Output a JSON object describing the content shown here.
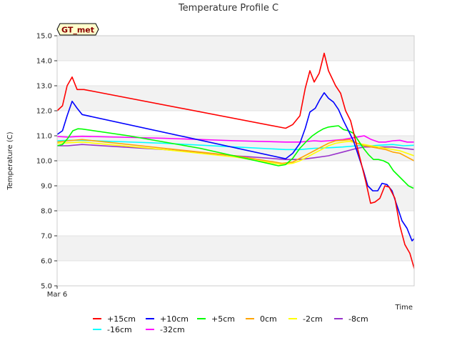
{
  "chart_data": {
    "type": "line",
    "title": "Temperature Profile C",
    "xlabel": "Time",
    "ylabel": "Temperature (C)",
    "ylim": [
      5.0,
      15.0
    ],
    "yticks": [
      "5.0",
      "6.0",
      "7.0",
      "8.0",
      "9.0",
      "10.0",
      "11.0",
      "12.0",
      "13.0",
      "14.0",
      "15.0"
    ],
    "xtick_label": "Mar 6",
    "annotation": "GT_met",
    "legend_position": "bottom",
    "grid": "alternating horizontal bands",
    "xlim": [
      0,
      100
    ],
    "series": [
      {
        "name": "+15cm",
        "color": "#ff0000",
        "points": [
          [
            0,
            12.0
          ],
          [
            1.5,
            12.2
          ],
          [
            2.8,
            13.0
          ],
          [
            4.2,
            13.35
          ],
          [
            5.6,
            12.85
          ],
          [
            7.5,
            12.85
          ],
          [
            64,
            11.3
          ],
          [
            66,
            11.45
          ],
          [
            68,
            11.8
          ],
          [
            69.5,
            12.9
          ],
          [
            70.8,
            13.6
          ],
          [
            72,
            13.15
          ],
          [
            73.4,
            13.5
          ],
          [
            74.8,
            14.3
          ],
          [
            76,
            13.6
          ],
          [
            78,
            13.0
          ],
          [
            79.4,
            12.7
          ],
          [
            80.8,
            12.0
          ],
          [
            82.2,
            11.6
          ],
          [
            83.6,
            10.8
          ],
          [
            85,
            10.0
          ],
          [
            86.4,
            9.2
          ],
          [
            87.8,
            8.3
          ],
          [
            89,
            8.35
          ],
          [
            90.4,
            8.5
          ],
          [
            91.8,
            9.0
          ],
          [
            93,
            8.95
          ],
          [
            94.6,
            8.5
          ],
          [
            96,
            7.4
          ],
          [
            97.4,
            6.65
          ],
          [
            98.8,
            6.3
          ],
          [
            100.2,
            5.6
          ],
          [
            101.5,
            6.1
          ]
        ]
      },
      {
        "name": "+10cm",
        "color": "#0000ff",
        "points": [
          [
            0,
            11.05
          ],
          [
            1.5,
            11.2
          ],
          [
            2.8,
            11.8
          ],
          [
            4.2,
            12.38
          ],
          [
            5.6,
            12.1
          ],
          [
            7,
            11.85
          ],
          [
            64,
            10.08
          ],
          [
            66,
            10.3
          ],
          [
            68,
            10.7
          ],
          [
            69.5,
            11.3
          ],
          [
            70.8,
            11.95
          ],
          [
            72.3,
            12.1
          ],
          [
            73.6,
            12.45
          ],
          [
            74.8,
            12.72
          ],
          [
            76,
            12.5
          ],
          [
            77.4,
            12.35
          ],
          [
            78.8,
            12.05
          ],
          [
            80.2,
            11.6
          ],
          [
            81.6,
            11.2
          ],
          [
            83,
            10.8
          ],
          [
            84.4,
            10.2
          ],
          [
            85.8,
            9.6
          ],
          [
            87,
            9.0
          ],
          [
            88.4,
            8.8
          ],
          [
            89.8,
            8.8
          ],
          [
            91,
            9.1
          ],
          [
            92.4,
            9.05
          ],
          [
            93.8,
            8.8
          ],
          [
            95.2,
            8.2
          ],
          [
            96.6,
            7.6
          ],
          [
            98,
            7.3
          ],
          [
            99.4,
            6.8
          ],
          [
            100.8,
            7.0
          ]
        ]
      },
      {
        "name": "+5cm",
        "color": "#00ff00",
        "points": [
          [
            0,
            10.6
          ],
          [
            1.5,
            10.65
          ],
          [
            3,
            10.9
          ],
          [
            4.4,
            11.2
          ],
          [
            5.8,
            11.28
          ],
          [
            7,
            11.27
          ],
          [
            20,
            11.0
          ],
          [
            40,
            10.5
          ],
          [
            62,
            9.8
          ],
          [
            64,
            9.85
          ],
          [
            66,
            10.1
          ],
          [
            68,
            10.5
          ],
          [
            70,
            10.8
          ],
          [
            71.5,
            11.0
          ],
          [
            73,
            11.15
          ],
          [
            74.6,
            11.28
          ],
          [
            76,
            11.35
          ],
          [
            77.6,
            11.38
          ],
          [
            78.8,
            11.4
          ],
          [
            80.2,
            11.25
          ],
          [
            81.6,
            11.2
          ],
          [
            83,
            11.1
          ],
          [
            84.4,
            10.8
          ],
          [
            85.8,
            10.5
          ],
          [
            87.2,
            10.25
          ],
          [
            88.6,
            10.05
          ],
          [
            90,
            10.05
          ],
          [
            91.4,
            10.0
          ],
          [
            92.8,
            9.9
          ],
          [
            94.2,
            9.6
          ],
          [
            95.6,
            9.4
          ],
          [
            97,
            9.2
          ],
          [
            98.4,
            9.0
          ],
          [
            99.8,
            8.9
          ]
        ]
      },
      {
        "name": "0cm",
        "color": "#ffa500",
        "points": [
          [
            0,
            10.75
          ],
          [
            3,
            10.8
          ],
          [
            7,
            10.85
          ],
          [
            30,
            10.5
          ],
          [
            50,
            10.2
          ],
          [
            63,
            9.9
          ],
          [
            66,
            9.95
          ],
          [
            68,
            10.1
          ],
          [
            70,
            10.25
          ],
          [
            72,
            10.4
          ],
          [
            74,
            10.55
          ],
          [
            76,
            10.7
          ],
          [
            78,
            10.8
          ],
          [
            80,
            10.82
          ],
          [
            82,
            10.85
          ],
          [
            84,
            10.7
          ],
          [
            86,
            10.6
          ],
          [
            88,
            10.55
          ],
          [
            90,
            10.5
          ],
          [
            92,
            10.45
          ],
          [
            94,
            10.35
          ],
          [
            96,
            10.3
          ],
          [
            98,
            10.15
          ],
          [
            100,
            10.0
          ]
        ]
      },
      {
        "name": "-2cm",
        "color": "#ffff00",
        "points": [
          [
            0,
            10.7
          ],
          [
            3,
            10.72
          ],
          [
            7,
            10.75
          ],
          [
            30,
            10.45
          ],
          [
            50,
            10.15
          ],
          [
            63,
            9.85
          ],
          [
            66,
            9.9
          ],
          [
            68,
            10.0
          ],
          [
            70,
            10.15
          ],
          [
            72,
            10.3
          ],
          [
            74,
            10.45
          ],
          [
            76,
            10.6
          ],
          [
            78,
            10.7
          ],
          [
            80,
            10.75
          ],
          [
            82,
            10.78
          ],
          [
            84,
            10.7
          ],
          [
            86,
            10.65
          ],
          [
            88,
            10.6
          ],
          [
            90,
            10.55
          ],
          [
            92,
            10.5
          ],
          [
            94,
            10.45
          ],
          [
            96,
            10.4
          ],
          [
            98,
            10.3
          ],
          [
            100,
            10.2
          ]
        ]
      },
      {
        "name": "-8cm",
        "color": "#9932cc",
        "points": [
          [
            0,
            10.6
          ],
          [
            3,
            10.6
          ],
          [
            7,
            10.65
          ],
          [
            30,
            10.45
          ],
          [
            50,
            10.2
          ],
          [
            64,
            10.05
          ],
          [
            68,
            10.05
          ],
          [
            72,
            10.12
          ],
          [
            76,
            10.2
          ],
          [
            80,
            10.35
          ],
          [
            84,
            10.5
          ],
          [
            86,
            10.55
          ],
          [
            90,
            10.55
          ],
          [
            94,
            10.55
          ],
          [
            97,
            10.5
          ],
          [
            100,
            10.45
          ]
        ]
      },
      {
        "name": "-16cm",
        "color": "#00ffff",
        "points": [
          [
            0,
            10.8
          ],
          [
            3,
            10.82
          ],
          [
            7,
            10.82
          ],
          [
            30,
            10.7
          ],
          [
            50,
            10.55
          ],
          [
            64,
            10.45
          ],
          [
            68,
            10.45
          ],
          [
            72,
            10.5
          ],
          [
            76,
            10.52
          ],
          [
            80,
            10.55
          ],
          [
            84,
            10.6
          ],
          [
            88,
            10.6
          ],
          [
            90,
            10.62
          ],
          [
            94,
            10.65
          ],
          [
            97,
            10.6
          ],
          [
            100,
            10.62
          ]
        ]
      },
      {
        "name": "-32cm",
        "color": "#ff00ff",
        "points": [
          [
            0,
            10.97
          ],
          [
            3,
            10.95
          ],
          [
            7,
            10.98
          ],
          [
            30,
            10.9
          ],
          [
            50,
            10.8
          ],
          [
            64,
            10.75
          ],
          [
            68,
            10.75
          ],
          [
            72,
            10.8
          ],
          [
            74,
            10.78
          ],
          [
            76,
            10.8
          ],
          [
            80,
            10.85
          ],
          [
            84,
            10.95
          ],
          [
            86,
            11.0
          ],
          [
            88,
            10.85
          ],
          [
            90,
            10.75
          ],
          [
            92,
            10.75
          ],
          [
            94,
            10.8
          ],
          [
            96,
            10.82
          ],
          [
            98,
            10.75
          ],
          [
            100,
            10.75
          ]
        ]
      }
    ]
  }
}
